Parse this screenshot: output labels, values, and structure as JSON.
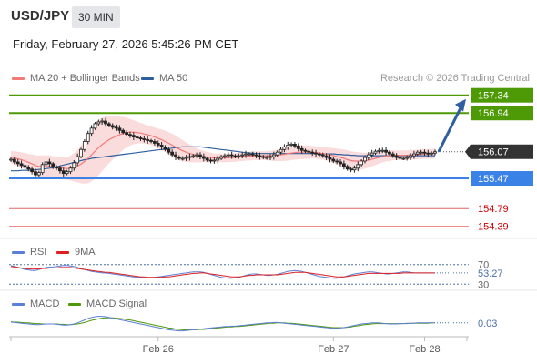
{
  "header": {
    "symbol": "USD/JPY",
    "timeframe": "30 MIN",
    "datetime": "Friday, February 27, 2026 5:45:26 PM CET",
    "credit": "Research © 2026 Trading Central"
  },
  "legend": {
    "ma20_bb": {
      "label": "MA 20 + Bollinger Bands",
      "color": "#f47a7a"
    },
    "ma50": {
      "label": "MA 50",
      "color": "#2f5f9e"
    },
    "rsi": {
      "label": "RSI",
      "color": "#5b7fd6"
    },
    "rsi_ma": {
      "label": "9MA",
      "color": "#e02020"
    },
    "macd": {
      "label": "MACD",
      "color": "#5b7fd6"
    },
    "macd_signal": {
      "label": "MACD Signal",
      "color": "#4e9a06"
    }
  },
  "chart_data": [
    {
      "type": "candlestick",
      "panel": "price",
      "y_range": [
        154.2,
        157.6
      ],
      "x_ticks": [
        "Feb 26",
        "Feb 27",
        "Feb 28"
      ],
      "current_price": "156.07",
      "levels": [
        {
          "value": "157.34",
          "kind": "resistance",
          "color": "#4e9a06"
        },
        {
          "value": "156.94",
          "kind": "resistance",
          "color": "#4e9a06"
        },
        {
          "value": "155.47",
          "kind": "pivot",
          "color": "#3b82e6"
        },
        {
          "value": "154.79",
          "kind": "support",
          "color": "#e06666"
        },
        {
          "value": "154.39",
          "kind": "support",
          "color": "#e06666"
        }
      ],
      "forecast_arrow": {
        "from": 156.07,
        "to": 157.34,
        "color": "#2f5f9e"
      },
      "close": [
        155.9,
        155.84,
        155.8,
        155.76,
        155.72,
        155.68,
        155.62,
        155.55,
        155.6,
        155.78,
        155.84,
        155.8,
        155.72,
        155.7,
        155.64,
        155.58,
        155.62,
        155.7,
        155.82,
        155.96,
        156.12,
        156.3,
        156.48,
        156.6,
        156.7,
        156.74,
        156.76,
        156.7,
        156.66,
        156.62,
        156.6,
        156.55,
        156.5,
        156.46,
        156.44,
        156.4,
        156.38,
        156.36,
        156.34,
        156.32,
        156.3,
        156.26,
        156.22,
        156.18,
        156.12,
        156.06,
        156.0,
        155.95,
        155.92,
        155.92,
        155.94,
        155.96,
        155.98,
        156.0,
        155.96,
        155.92,
        155.88,
        155.86,
        155.88,
        155.92,
        155.96,
        155.98,
        156.0,
        155.98,
        155.96,
        155.98,
        156.0,
        156.02,
        156.02,
        156.0,
        155.98,
        155.96,
        155.94,
        155.94,
        155.96,
        156.0,
        156.06,
        156.12,
        156.18,
        156.22,
        156.24,
        156.2,
        156.14,
        156.1,
        156.08,
        156.06,
        156.04,
        156.02,
        156.0,
        155.98,
        155.94,
        155.9,
        155.86,
        155.84,
        155.8,
        155.74,
        155.68,
        155.66,
        155.7,
        155.78,
        155.86,
        155.94,
        156.0,
        156.04,
        156.08,
        156.1,
        156.1,
        156.06,
        156.02,
        155.98,
        155.94,
        155.92,
        155.92,
        155.94,
        155.98,
        156.02,
        156.06,
        156.06,
        156.04,
        156.02,
        156.04,
        156.07
      ],
      "ma20": [
        155.95,
        155.93,
        155.91,
        155.89,
        155.86,
        155.83,
        155.8,
        155.76,
        155.74,
        155.74,
        155.74,
        155.74,
        155.73,
        155.72,
        155.71,
        155.7,
        155.69,
        155.7,
        155.72,
        155.75,
        155.79,
        155.85,
        155.92,
        156.0,
        156.08,
        156.16,
        156.23,
        156.29,
        156.34,
        156.38,
        156.42,
        156.45,
        156.48,
        156.5,
        156.51,
        156.51,
        156.5,
        156.49,
        156.47,
        156.45,
        156.43,
        156.4,
        156.37,
        156.34,
        156.3,
        156.26,
        156.22,
        156.17,
        156.13,
        156.09,
        156.06,
        156.03,
        156.01,
        155.99,
        155.97,
        155.96,
        155.95,
        155.94,
        155.93,
        155.93,
        155.93,
        155.93,
        155.93,
        155.94,
        155.94,
        155.95,
        155.96,
        155.97,
        155.97,
        155.98,
        155.98,
        155.98,
        155.98,
        155.98,
        155.98,
        155.98,
        155.99,
        156.0,
        156.01,
        156.03,
        156.04,
        156.05,
        156.06,
        156.06,
        156.06,
        156.06,
        156.06,
        156.05,
        156.04,
        156.03,
        156.02,
        156.0,
        155.98,
        155.96,
        155.94,
        155.92,
        155.89,
        155.87,
        155.86,
        155.86,
        155.86,
        155.87,
        155.88,
        155.9,
        155.92,
        155.94,
        155.96,
        155.97,
        155.98,
        155.99,
        155.99,
        155.99,
        155.99,
        155.99,
        156.0,
        156.0,
        156.01,
        156.01,
        156.02,
        156.02,
        156.02,
        156.03
      ],
      "bb_width": [
        0.14,
        0.15,
        0.16,
        0.17,
        0.18,
        0.19,
        0.21,
        0.23,
        0.24,
        0.25,
        0.25,
        0.25,
        0.24,
        0.24,
        0.24,
        0.25,
        0.26,
        0.28,
        0.32,
        0.37,
        0.43,
        0.5,
        0.56,
        0.6,
        0.62,
        0.62,
        0.6,
        0.57,
        0.53,
        0.49,
        0.45,
        0.41,
        0.37,
        0.33,
        0.3,
        0.27,
        0.25,
        0.23,
        0.22,
        0.21,
        0.21,
        0.21,
        0.22,
        0.23,
        0.24,
        0.25,
        0.26,
        0.26,
        0.25,
        0.24,
        0.22,
        0.2,
        0.18,
        0.16,
        0.14,
        0.13,
        0.12,
        0.11,
        0.1,
        0.1,
        0.1,
        0.1,
        0.1,
        0.1,
        0.1,
        0.1,
        0.1,
        0.1,
        0.1,
        0.1,
        0.1,
        0.1,
        0.1,
        0.1,
        0.11,
        0.12,
        0.13,
        0.14,
        0.15,
        0.16,
        0.16,
        0.16,
        0.16,
        0.16,
        0.15,
        0.15,
        0.14,
        0.14,
        0.14,
        0.14,
        0.15,
        0.16,
        0.17,
        0.18,
        0.19,
        0.2,
        0.21,
        0.21,
        0.21,
        0.2,
        0.19,
        0.18,
        0.17,
        0.16,
        0.15,
        0.14,
        0.13,
        0.12,
        0.12,
        0.11,
        0.11,
        0.11,
        0.11,
        0.11,
        0.11,
        0.11,
        0.11,
        0.11,
        0.11,
        0.11,
        0.11,
        0.11
      ],
      "ma50": [
        155.64,
        155.64,
        155.64,
        155.65,
        155.65,
        155.65,
        155.66,
        155.66,
        155.67,
        155.68,
        155.69,
        155.7,
        155.71,
        155.73,
        155.75,
        155.77,
        155.79,
        155.81,
        155.83,
        155.85,
        155.87,
        155.89,
        155.9,
        155.92,
        155.93,
        155.94,
        155.95,
        155.96,
        155.97,
        155.98,
        155.99,
        156.0,
        156.01,
        156.02,
        156.03,
        156.04,
        156.05,
        156.06,
        156.07,
        156.08,
        156.09,
        156.1,
        156.11,
        156.12,
        156.13,
        156.14,
        156.15,
        156.16,
        156.17,
        156.18,
        156.18,
        156.18,
        156.18,
        156.18,
        156.18,
        156.17,
        156.16,
        156.15,
        156.14,
        156.13,
        156.12,
        156.11,
        156.1,
        156.09,
        156.08,
        156.07,
        156.06,
        156.05,
        156.04,
        156.04,
        156.03,
        156.03,
        156.03,
        156.03,
        156.03,
        156.03,
        156.03,
        156.03,
        156.03,
        156.03,
        156.03,
        156.03,
        156.03,
        156.03,
        156.03,
        156.03,
        156.03,
        156.03,
        156.03,
        156.02,
        156.02,
        156.02,
        156.02,
        156.01,
        156.01,
        156.0,
        156.0,
        155.99,
        155.99,
        155.98,
        155.98,
        155.98,
        155.98,
        155.98,
        155.98,
        155.98,
        155.98,
        155.98,
        155.98,
        155.98,
        155.98,
        155.98,
        155.98,
        155.98,
        155.98,
        155.98,
        155.98,
        155.98,
        155.98,
        155.98,
        155.98,
        155.98
      ]
    },
    {
      "type": "line",
      "panel": "rsi",
      "y_range": [
        25,
        75
      ],
      "y_ticks": [
        "70",
        "30"
      ],
      "current_value": "53.27",
      "series": [
        {
          "name": "RSI",
          "values": [
            68,
            66,
            64,
            62,
            60,
            59,
            58,
            58,
            60,
            62,
            64,
            65,
            65,
            66,
            67,
            68,
            68,
            67,
            66,
            64,
            62,
            60,
            58,
            56,
            55,
            54,
            53,
            53,
            52,
            51,
            50,
            49,
            48,
            47,
            46,
            45,
            44,
            44,
            43,
            43,
            43,
            44,
            45,
            46,
            47,
            48,
            49,
            50,
            51,
            52,
            53,
            54,
            55,
            55,
            55,
            54,
            52,
            50,
            48,
            46,
            44,
            43,
            42,
            42,
            43,
            44,
            46,
            48,
            50,
            51,
            51,
            50,
            49,
            48,
            48,
            49,
            50,
            52,
            54,
            56,
            57,
            58,
            57,
            56,
            54,
            52,
            50,
            48,
            46,
            45,
            44,
            43,
            42,
            42,
            43,
            45,
            47,
            49,
            51,
            52,
            53,
            54,
            55,
            55,
            54,
            53,
            52,
            51,
            51,
            52,
            53,
            54,
            55,
            55,
            54,
            53,
            53,
            53,
            53,
            53,
            53,
            53
          ]
        },
        {
          "name": "9MA",
          "values": [
            66,
            65,
            64,
            63,
            62,
            61,
            61,
            61,
            61,
            62,
            62,
            63,
            63,
            63,
            64,
            64,
            64,
            64,
            63,
            62,
            61,
            60,
            59,
            58,
            57,
            56,
            55,
            54,
            54,
            53,
            52,
            51,
            50,
            49,
            48,
            47,
            46,
            45,
            45,
            44,
            44,
            44,
            44,
            44,
            45,
            45,
            46,
            47,
            48,
            49,
            50,
            51,
            52,
            52,
            53,
            53,
            52,
            51,
            50,
            49,
            48,
            47,
            46,
            45,
            45,
            45,
            46,
            47,
            48,
            48,
            49,
            49,
            49,
            49,
            49,
            49,
            49,
            50,
            51,
            52,
            53,
            54,
            54,
            54,
            54,
            53,
            52,
            51,
            50,
            49,
            48,
            47,
            46,
            45,
            45,
            45,
            46,
            47,
            48,
            49,
            50,
            51,
            52,
            52,
            52,
            52,
            52,
            52,
            52,
            52,
            52,
            52,
            53,
            53,
            53,
            53,
            53,
            53,
            53,
            53,
            53,
            53
          ]
        }
      ]
    },
    {
      "type": "line",
      "panel": "macd",
      "y_range": [
        -0.3,
        0.35
      ],
      "current_value": "0.03",
      "series": [
        {
          "name": "MACD",
          "values": [
            0.05,
            0.04,
            0.03,
            0.02,
            0.01,
            0.0,
            -0.01,
            -0.02,
            -0.02,
            -0.01,
            0.0,
            0.0,
            0.0,
            -0.01,
            -0.02,
            -0.03,
            -0.03,
            -0.02,
            0.0,
            0.03,
            0.07,
            0.11,
            0.15,
            0.18,
            0.2,
            0.21,
            0.21,
            0.2,
            0.18,
            0.16,
            0.14,
            0.12,
            0.1,
            0.08,
            0.06,
            0.04,
            0.02,
            0.0,
            -0.02,
            -0.04,
            -0.06,
            -0.08,
            -0.1,
            -0.12,
            -0.14,
            -0.16,
            -0.17,
            -0.18,
            -0.19,
            -0.19,
            -0.18,
            -0.17,
            -0.16,
            -0.15,
            -0.14,
            -0.13,
            -0.12,
            -0.11,
            -0.1,
            -0.09,
            -0.08,
            -0.07,
            -0.07,
            -0.06,
            -0.06,
            -0.05,
            -0.04,
            -0.03,
            -0.02,
            -0.01,
            0.0,
            0.01,
            0.02,
            0.03,
            0.03,
            0.04,
            0.04,
            0.03,
            0.02,
            0.01,
            0.0,
            -0.01,
            -0.02,
            -0.03,
            -0.04,
            -0.05,
            -0.06,
            -0.07,
            -0.08,
            -0.09,
            -0.1,
            -0.11,
            -0.12,
            -0.12,
            -0.11,
            -0.1,
            -0.08,
            -0.06,
            -0.04,
            -0.02,
            0.0,
            0.01,
            0.02,
            0.03,
            0.03,
            0.03,
            0.02,
            0.01,
            0.0,
            0.0,
            0.0,
            0.01,
            0.01,
            0.02,
            0.02,
            0.02,
            0.03,
            0.03,
            0.03,
            0.03,
            0.03,
            0.03
          ]
        },
        {
          "name": "MACD Signal",
          "values": [
            0.06,
            0.05,
            0.05,
            0.04,
            0.03,
            0.03,
            0.02,
            0.01,
            0.01,
            0.0,
            0.0,
            0.0,
            0.0,
            0.0,
            -0.01,
            -0.01,
            -0.02,
            -0.02,
            -0.01,
            0.0,
            0.02,
            0.04,
            0.07,
            0.1,
            0.12,
            0.14,
            0.16,
            0.17,
            0.17,
            0.17,
            0.16,
            0.15,
            0.14,
            0.12,
            0.11,
            0.09,
            0.07,
            0.05,
            0.03,
            0.01,
            -0.01,
            -0.03,
            -0.05,
            -0.07,
            -0.09,
            -0.11,
            -0.12,
            -0.14,
            -0.15,
            -0.16,
            -0.16,
            -0.16,
            -0.16,
            -0.16,
            -0.15,
            -0.15,
            -0.14,
            -0.13,
            -0.12,
            -0.11,
            -0.1,
            -0.09,
            -0.08,
            -0.08,
            -0.07,
            -0.07,
            -0.06,
            -0.05,
            -0.04,
            -0.03,
            -0.02,
            -0.01,
            0.0,
            0.01,
            0.02,
            0.02,
            0.03,
            0.03,
            0.03,
            0.02,
            0.02,
            0.01,
            0.0,
            -0.01,
            -0.02,
            -0.03,
            -0.04,
            -0.05,
            -0.06,
            -0.07,
            -0.08,
            -0.09,
            -0.1,
            -0.1,
            -0.1,
            -0.1,
            -0.09,
            -0.08,
            -0.06,
            -0.05,
            -0.03,
            -0.02,
            -0.01,
            0.0,
            0.01,
            0.01,
            0.01,
            0.01,
            0.01,
            0.01,
            0.01,
            0.01,
            0.01,
            0.01,
            0.02,
            0.02,
            0.02,
            0.02,
            0.02,
            0.02,
            0.03,
            0.03
          ]
        }
      ]
    }
  ]
}
